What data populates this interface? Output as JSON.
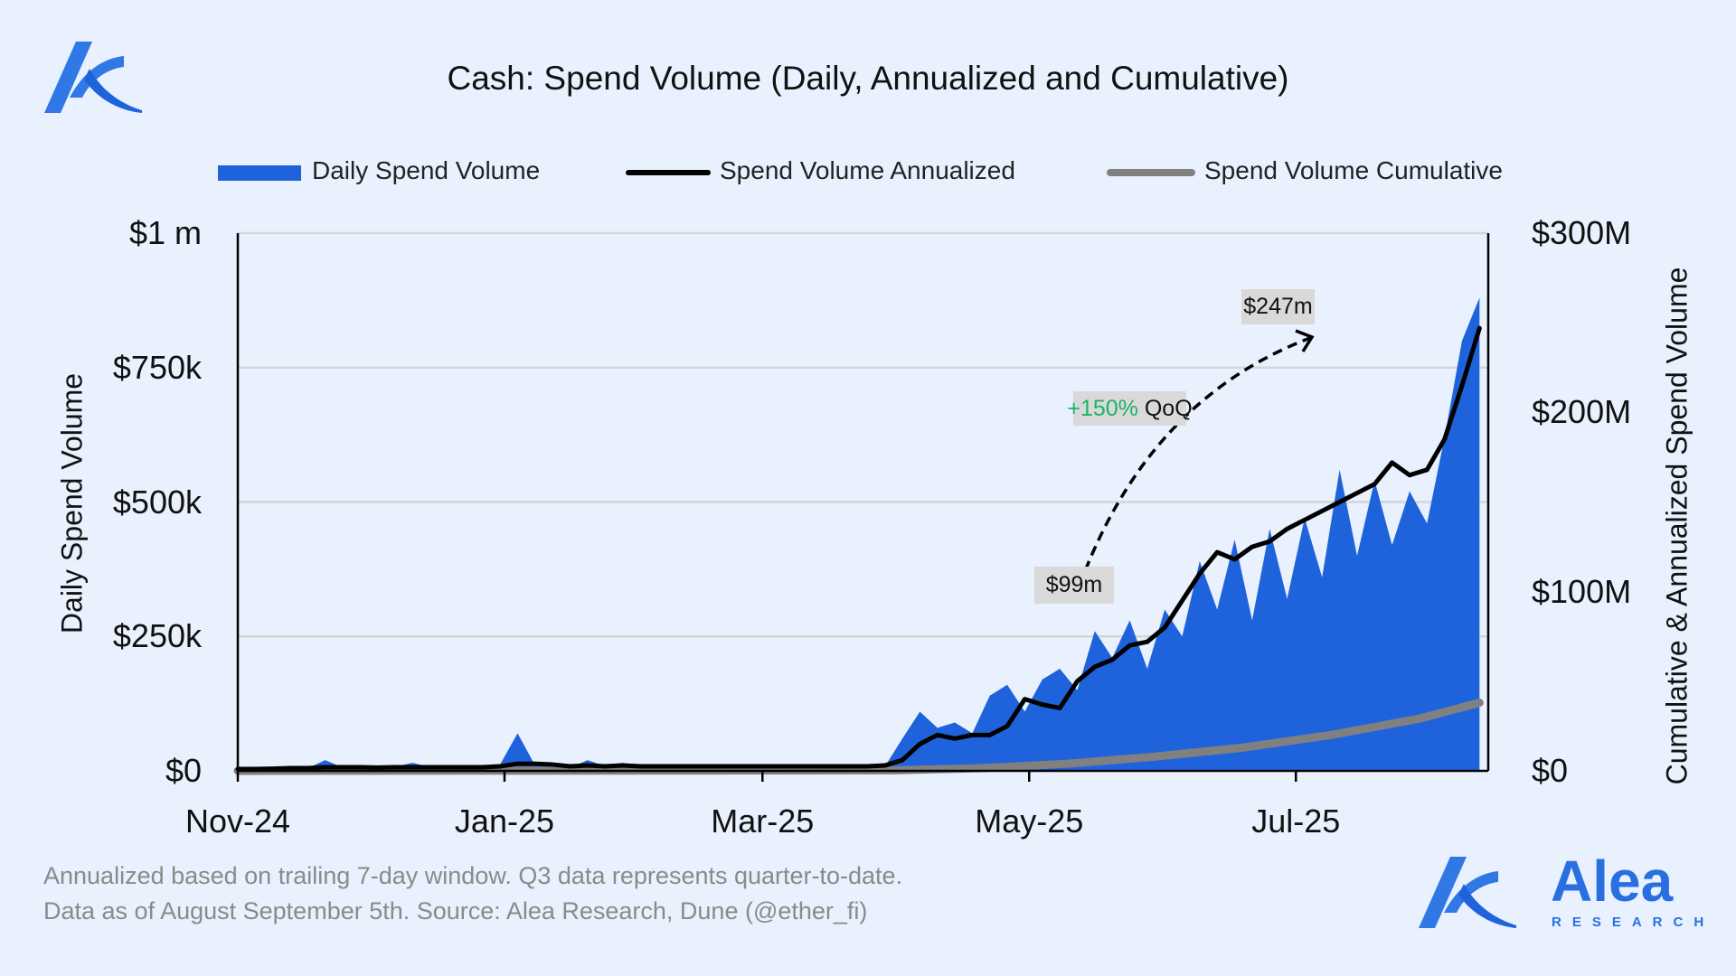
{
  "header": {
    "title": "Cash: Spend Volume (Daily, Annualized and Cumulative)"
  },
  "colors": {
    "daily": "#1f63dc",
    "annualized": "#000000",
    "cumulative": "#808080",
    "grid": "#d6d6d6",
    "background": "#e8f1fd",
    "positive": "#1db36b",
    "brand": "#2a6fe0"
  },
  "chart_data": {
    "type": "area",
    "title": "Cash: Spend Volume (Daily, Annualized and Cumulative)",
    "x_unit": "days since 2024-11-01",
    "xlim": [
      0,
      286
    ],
    "x_ticks": [
      {
        "day": 0,
        "label": "Nov-24"
      },
      {
        "day": 61,
        "label": "Jan-25"
      },
      {
        "day": 120,
        "label": "Mar-25"
      },
      {
        "day": 181,
        "label": "May-25"
      },
      {
        "day": 242,
        "label": "Jul-25"
      }
    ],
    "ylabel_left": "Daily Spend Volume",
    "ylabel_right": "Cumulative & Annualized Spend Volume",
    "ylim_left_k": [
      0,
      1000
    ],
    "ylim_right_m": [
      0,
      300
    ],
    "y_ticks_left": [
      {
        "value": 0,
        "label": "$0"
      },
      {
        "value": 250,
        "label": "$250k"
      },
      {
        "value": 500,
        "label": "$500k"
      },
      {
        "value": 750,
        "label": "$750k"
      },
      {
        "value": 1000,
        "label": "$1 m"
      }
    ],
    "y_ticks_right": [
      {
        "value": 0,
        "label": "$0"
      },
      {
        "value": 100,
        "label": "$100M"
      },
      {
        "value": 200,
        "label": "$200M"
      },
      {
        "value": 300,
        "label": "$300M"
      }
    ],
    "grid": true,
    "legend_position": "top",
    "legend": [
      "Daily Spend Volume",
      "Spend Volume Annualized",
      "Spend Volume Cumulative"
    ],
    "days": [
      0,
      4,
      8,
      12,
      16,
      20,
      24,
      28,
      32,
      36,
      40,
      44,
      48,
      52,
      56,
      60,
      64,
      68,
      72,
      76,
      80,
      84,
      88,
      92,
      96,
      100,
      104,
      108,
      112,
      116,
      120,
      124,
      128,
      132,
      136,
      140,
      144,
      148,
      152,
      156,
      160,
      164,
      168,
      172,
      176,
      180,
      184,
      188,
      192,
      196,
      200,
      204,
      208,
      212,
      216,
      220,
      224,
      228,
      232,
      236,
      240,
      244,
      248,
      252,
      256,
      260,
      264,
      268,
      272,
      276,
      280,
      284
    ],
    "series": [
      {
        "name": "Daily Spend Volume",
        "axis": "left",
        "unit": "$k",
        "values": [
          3,
          4,
          5,
          6,
          5,
          20,
          6,
          7,
          6,
          8,
          15,
          7,
          6,
          8,
          7,
          12,
          70,
          10,
          8,
          6,
          20,
          9,
          15,
          7,
          6,
          8,
          6,
          7,
          5,
          6,
          7,
          6,
          5,
          6,
          7,
          6,
          5,
          8,
          60,
          110,
          80,
          90,
          70,
          140,
          160,
          110,
          170,
          190,
          150,
          260,
          210,
          280,
          190,
          300,
          250,
          390,
          300,
          430,
          280,
          450,
          320,
          470,
          360,
          560,
          400,
          540,
          420,
          520,
          460,
          620,
          800,
          880
        ]
      },
      {
        "name": "Spend Volume Annualized",
        "axis": "right",
        "unit": "$M",
        "values": [
          1,
          1,
          1.2,
          1.5,
          1.5,
          2,
          2,
          2,
          1.8,
          2,
          2,
          2,
          2,
          2,
          2,
          2.5,
          4,
          4,
          3.5,
          2.5,
          3,
          2.5,
          3,
          2.5,
          2.5,
          2.5,
          2.5,
          2.5,
          2.5,
          2.5,
          2.5,
          2.5,
          2.5,
          2.5,
          2.5,
          2.5,
          2.5,
          3,
          6,
          15,
          20,
          18,
          20,
          20,
          25,
          40,
          37,
          35,
          50,
          58,
          62,
          70,
          72,
          80,
          95,
          110,
          122,
          118,
          125,
          128,
          135,
          140,
          145,
          150,
          155,
          160,
          172,
          165,
          168,
          185,
          215,
          247
        ]
      },
      {
        "name": "Spend Volume Cumulative",
        "axis": "right",
        "unit": "$M",
        "days": [
          0,
          150,
          170,
          190,
          210,
          230,
          250,
          270,
          284
        ],
        "values": [
          0,
          0.3,
          1.5,
          4,
          8,
          13,
          20,
          29,
          38
        ]
      }
    ],
    "annotations": [
      {
        "label": "$99m"
      },
      {
        "label": "$247m"
      },
      {
        "change": "+150%",
        "suffix": "QoQ"
      }
    ]
  },
  "footer": {
    "line1": "Annualized based on trailing 7-day window. Q3 data represents quarter-to-date.",
    "line2": "Data as of August September 5th. Source: Alea Research, Dune (@ether_fi)"
  },
  "brand": {
    "name": "Alea",
    "sub": "RESEARCH"
  }
}
